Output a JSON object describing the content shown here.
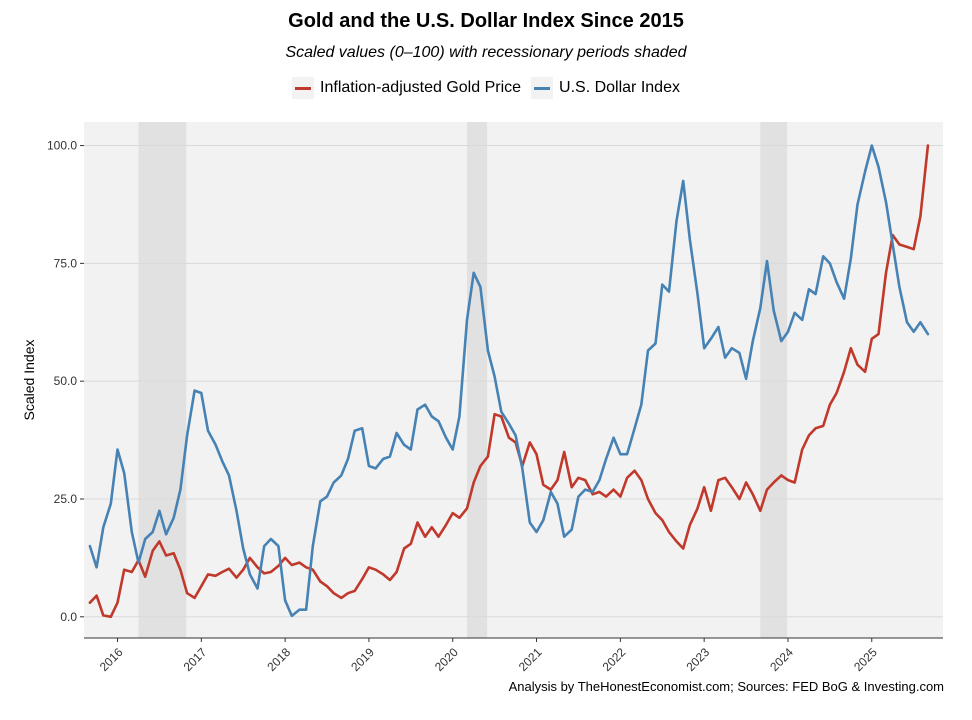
{
  "chart_data": {
    "type": "line",
    "title": "Gold and the U.S. Dollar Index Since 2015",
    "subtitle": "Scaled values (0–100) with recessionary periods shaded",
    "ylabel": "Scaled Index",
    "xlabel": "",
    "caption": "Analysis by TheHonestEconomist.com; Sources: FED BoG & Investing.com",
    "xlim": [
      2015.6,
      2025.85
    ],
    "ylim": [
      -4.5,
      105
    ],
    "yticks": [
      0,
      25,
      50,
      75,
      100
    ],
    "ytick_labels": [
      "0.0",
      "25.0",
      "50.0",
      "75.0",
      "100.0"
    ],
    "xticks": [
      2016,
      2017,
      2018,
      2019,
      2020,
      2021,
      2022,
      2023,
      2024,
      2025
    ],
    "xtick_labels": [
      "2016",
      "2017",
      "2018",
      "2019",
      "2020",
      "2021",
      "2022",
      "2023",
      "2024",
      "2025"
    ],
    "shaded_periods": [
      [
        2016.25,
        2016.82
      ],
      [
        2020.17,
        2020.41
      ],
      [
        2023.67,
        2023.99
      ]
    ],
    "series": [
      {
        "name": "Inflation-adjusted Gold Price",
        "color": "#c0392b",
        "x": [
          2015.67,
          2015.75,
          2015.83,
          2015.92,
          2016.0,
          2016.08,
          2016.17,
          2016.25,
          2016.33,
          2016.42,
          2016.5,
          2016.58,
          2016.67,
          2016.75,
          2016.83,
          2016.92,
          2017.0,
          2017.08,
          2017.17,
          2017.25,
          2017.33,
          2017.42,
          2017.5,
          2017.58,
          2017.67,
          2017.75,
          2017.83,
          2017.92,
          2018.0,
          2018.08,
          2018.17,
          2018.25,
          2018.33,
          2018.42,
          2018.5,
          2018.58,
          2018.67,
          2018.75,
          2018.83,
          2018.92,
          2019.0,
          2019.08,
          2019.17,
          2019.25,
          2019.33,
          2019.42,
          2019.5,
          2019.58,
          2019.67,
          2019.75,
          2019.83,
          2019.92,
          2020.0,
          2020.08,
          2020.17,
          2020.25,
          2020.33,
          2020.42,
          2020.5,
          2020.58,
          2020.67,
          2020.75,
          2020.83,
          2020.92,
          2021.0,
          2021.08,
          2021.17,
          2021.25,
          2021.33,
          2021.42,
          2021.5,
          2021.58,
          2021.67,
          2021.75,
          2021.83,
          2021.92,
          2022.0,
          2022.08,
          2022.17,
          2022.25,
          2022.33,
          2022.42,
          2022.5,
          2022.58,
          2022.67,
          2022.75,
          2022.83,
          2022.92,
          2023.0,
          2023.08,
          2023.17,
          2023.25,
          2023.33,
          2023.42,
          2023.5,
          2023.58,
          2023.67,
          2023.75,
          2023.83,
          2023.92,
          2024.0,
          2024.08,
          2024.17,
          2024.25,
          2024.33,
          2024.42,
          2024.5,
          2024.58,
          2024.67,
          2024.75,
          2024.83,
          2024.92,
          2025.0,
          2025.08,
          2025.17,
          2025.25,
          2025.33,
          2025.42,
          2025.5,
          2025.58,
          2025.67
        ],
        "values": [
          3,
          4.5,
          0.3,
          0,
          3,
          10,
          9.5,
          12,
          8.5,
          14,
          16,
          13,
          13.5,
          10,
          5,
          4,
          6.5,
          9,
          8.7,
          9.5,
          10.2,
          8.3,
          10,
          12.5,
          10.5,
          9.2,
          9.5,
          10.8,
          12.5,
          11,
          11.5,
          10.5,
          10,
          7.5,
          6.5,
          5,
          4,
          5,
          5.5,
          8,
          10.5,
          10,
          9,
          7.8,
          9.5,
          14.5,
          15.5,
          20,
          17,
          19,
          17,
          19.5,
          22,
          21,
          23,
          28.5,
          32,
          34,
          43,
          42.5,
          38,
          37,
          32,
          37,
          34.5,
          28,
          27,
          29,
          35,
          27.5,
          29.5,
          29,
          26,
          26.5,
          25.5,
          27,
          25.5,
          29.5,
          31,
          29,
          25,
          22,
          20.5,
          18,
          16,
          14.5,
          19.5,
          23,
          27.5,
          22.5,
          29,
          29.5,
          27.5,
          25,
          28.5,
          26,
          22.5,
          27,
          28.5,
          30,
          29,
          28.5,
          35.5,
          38.5,
          40,
          40.5,
          45,
          47.5,
          52,
          57,
          53.5,
          52,
          59,
          60,
          73,
          81,
          79,
          78.5,
          78,
          85,
          100
        ]
      },
      {
        "name": "U.S. Dollar Index",
        "color": "#4682b4",
        "x": [
          2015.67,
          2015.75,
          2015.83,
          2015.92,
          2016.0,
          2016.08,
          2016.17,
          2016.25,
          2016.33,
          2016.42,
          2016.5,
          2016.58,
          2016.67,
          2016.75,
          2016.83,
          2016.92,
          2017.0,
          2017.08,
          2017.17,
          2017.25,
          2017.33,
          2017.42,
          2017.5,
          2017.58,
          2017.67,
          2017.75,
          2017.83,
          2017.92,
          2018.0,
          2018.08,
          2018.17,
          2018.25,
          2018.33,
          2018.42,
          2018.5,
          2018.58,
          2018.67,
          2018.75,
          2018.83,
          2018.92,
          2019.0,
          2019.08,
          2019.17,
          2019.25,
          2019.33,
          2019.42,
          2019.5,
          2019.58,
          2019.67,
          2019.75,
          2019.83,
          2019.92,
          2020.0,
          2020.08,
          2020.17,
          2020.25,
          2020.33,
          2020.42,
          2020.5,
          2020.58,
          2020.67,
          2020.75,
          2020.83,
          2020.92,
          2021.0,
          2021.08,
          2021.17,
          2021.25,
          2021.33,
          2021.42,
          2021.5,
          2021.58,
          2021.67,
          2021.75,
          2021.83,
          2021.92,
          2022.0,
          2022.08,
          2022.17,
          2022.25,
          2022.33,
          2022.42,
          2022.5,
          2022.58,
          2022.67,
          2022.75,
          2022.83,
          2022.92,
          2023.0,
          2023.08,
          2023.17,
          2023.25,
          2023.33,
          2023.42,
          2023.5,
          2023.58,
          2023.67,
          2023.75,
          2023.83,
          2023.92,
          2024.0,
          2024.08,
          2024.17,
          2024.25,
          2024.33,
          2024.42,
          2024.5,
          2024.58,
          2024.67,
          2024.75,
          2024.83,
          2024.92,
          2025.0,
          2025.08,
          2025.17,
          2025.25,
          2025.33,
          2025.42,
          2025.5,
          2025.58,
          2025.67
        ],
        "values": [
          15,
          10.5,
          19,
          24,
          35.5,
          30.5,
          18,
          11.5,
          16.5,
          18,
          22.5,
          17.5,
          21,
          27,
          38.5,
          48,
          47.5,
          39.5,
          36.5,
          33,
          30,
          22.5,
          14.5,
          9,
          6,
          15,
          16.5,
          15,
          3.5,
          0.2,
          1.5,
          1.5,
          15,
          24.5,
          25.5,
          28.5,
          30,
          33.5,
          39.5,
          40,
          32,
          31.5,
          33.5,
          34,
          39,
          36.5,
          35.5,
          44,
          45,
          42.5,
          41.5,
          38,
          35.5,
          42.5,
          63,
          73,
          70,
          56.5,
          51,
          43.5,
          41,
          38.5,
          31.5,
          20,
          18,
          20.5,
          26.5,
          24,
          17,
          18.5,
          25.5,
          27,
          26.5,
          29,
          33.5,
          38,
          34.5,
          34.5,
          40,
          45,
          56.5,
          58,
          70.5,
          69,
          84,
          92.5,
          80,
          68.5,
          57,
          59,
          61.5,
          55,
          57,
          56,
          50.5,
          58.5,
          65.5,
          75.5,
          65,
          58.5,
          60.5,
          64.5,
          63,
          69.5,
          68.5,
          76.5,
          75,
          71,
          67.5,
          76,
          87.5,
          94.5,
          100,
          95.5,
          88,
          79,
          70,
          62.5,
          60.5,
          62.5,
          60
        ]
      }
    ]
  }
}
